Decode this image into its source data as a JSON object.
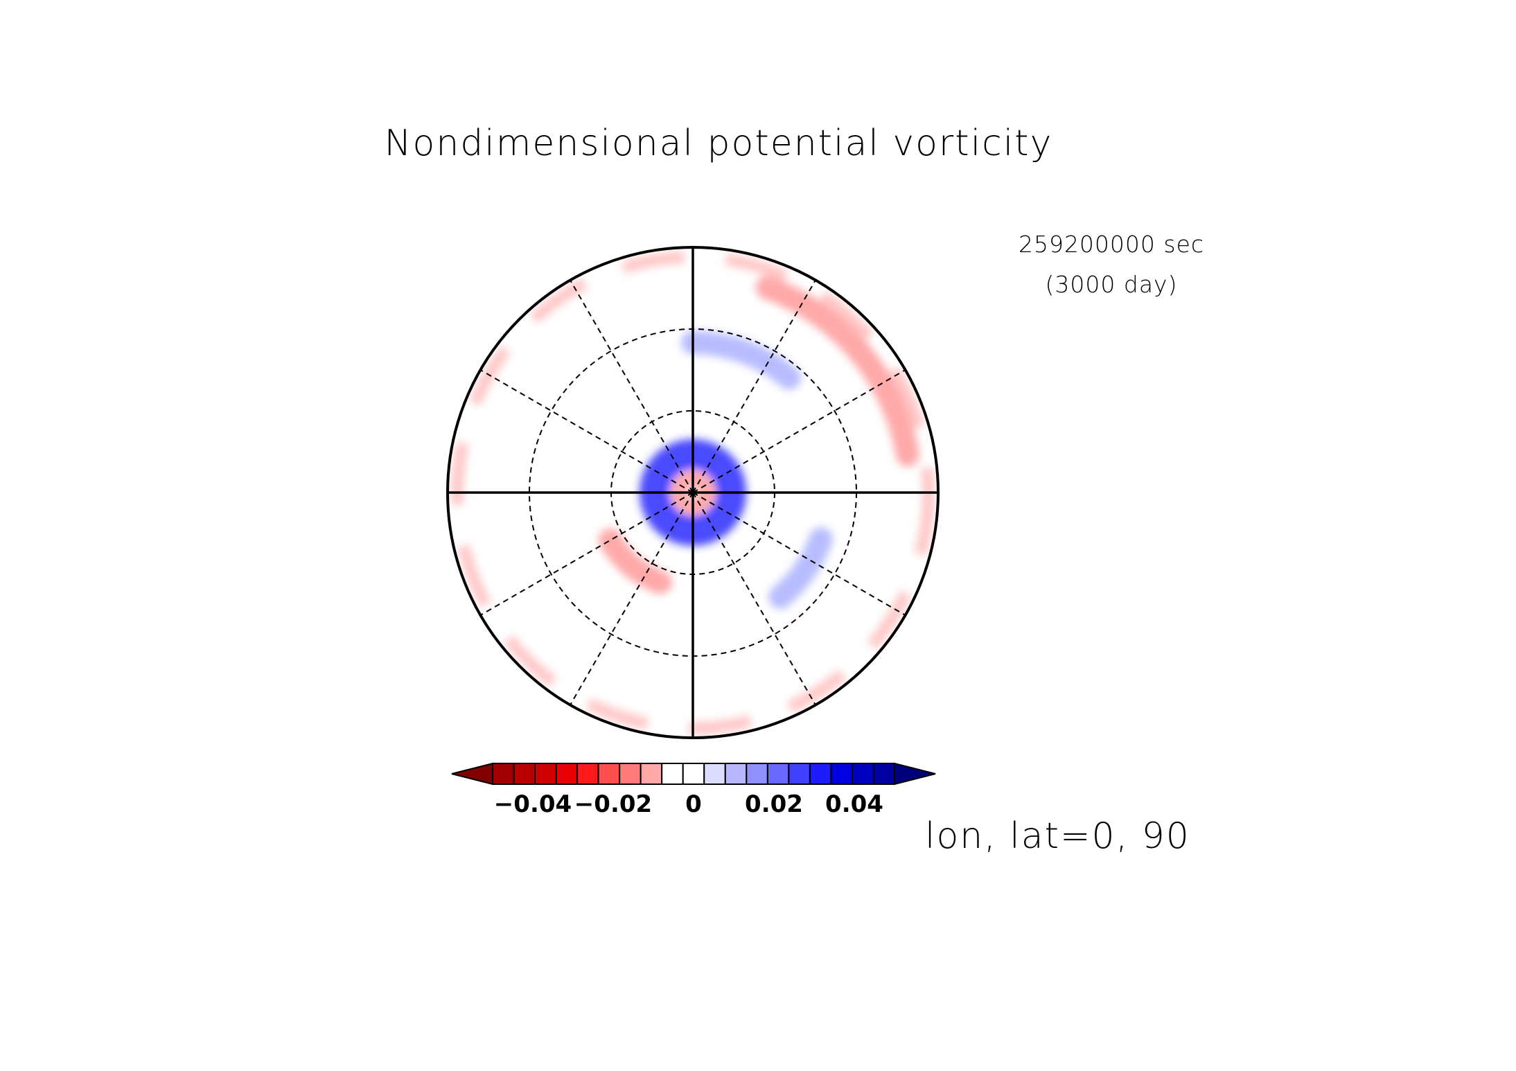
{
  "figure": {
    "title": "Nondimensional potential vorticity",
    "time_sec": "259200000 sec",
    "time_day": "(3000 day)",
    "projection_label": "lon, lat=0, 90"
  },
  "colorbar": {
    "tick_labels": [
      "−0.04",
      "−0.02",
      "0",
      "0.02",
      "0.04"
    ],
    "tick_values": [
      -0.04,
      -0.02,
      0,
      0.02,
      0.04
    ],
    "boxes": [
      "#a00000",
      "#b80000",
      "#d00000",
      "#e80000",
      "#ff1a1a",
      "#ff5050",
      "#ff7a7a",
      "#ffa8a8",
      "#ffffff",
      "#ffffff",
      "#dcdcff",
      "#b8b8ff",
      "#9090ff",
      "#6868ff",
      "#4040ff",
      "#1c1cff",
      "#0000e0",
      "#0000c0",
      "#0000a0"
    ],
    "left_arrow_color": "#800000",
    "right_arrow_color": "#00007a"
  },
  "chart_data": {
    "type": "heatmap",
    "title": "Nondimensional potential vorticity",
    "projection": "polar stereographic, north pole centered",
    "center": {
      "lon": 0,
      "lat": 90
    },
    "value_range": [
      -0.05,
      0.05
    ],
    "meridians": [
      0,
      30,
      60,
      90,
      120,
      150,
      180,
      210,
      240,
      270,
      300,
      330
    ],
    "parallels": [
      60,
      30
    ],
    "features": [
      {
        "kind": "ring",
        "sign": "positive",
        "lat": 76,
        "magnitude": 0.045
      },
      {
        "kind": "ring",
        "sign": "negative",
        "lat": 85,
        "magnitude": 0.02
      },
      {
        "kind": "band",
        "sign": "negative",
        "lat": 55,
        "lon_range": [
          300,
          340
        ],
        "magnitude": 0.02
      },
      {
        "kind": "band",
        "sign": "positive",
        "lat": 40,
        "lon_range": [
          40,
          70
        ],
        "magnitude": 0.02
      },
      {
        "kind": "band",
        "sign": "negative",
        "lat": 10,
        "lon_range": [
          100,
          160
        ],
        "magnitude": 0.02
      },
      {
        "kind": "band",
        "sign": "positive",
        "lat": 35,
        "lon_range": [
          140,
          180
        ],
        "magnitude": 0.02
      }
    ]
  },
  "colors": {
    "negative_strong": "#b80000",
    "positive_strong": "#0000c0",
    "frame": "#000000"
  }
}
